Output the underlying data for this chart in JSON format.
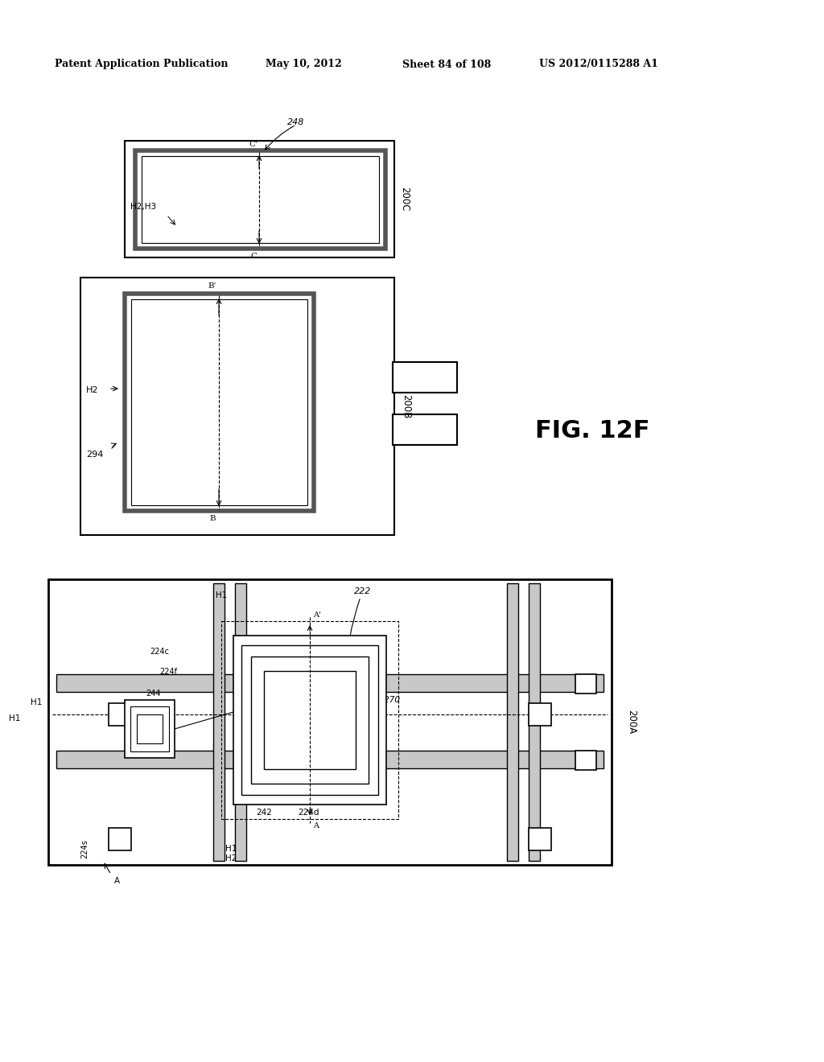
{
  "bg_color": "#ffffff",
  "header_text": "Patent Application Publication",
  "header_date": "May 10, 2012",
  "header_sheet": "Sheet 84 of 108",
  "header_patent": "US 2012/0115288 A1",
  "fig_label": "FIG. 12F"
}
